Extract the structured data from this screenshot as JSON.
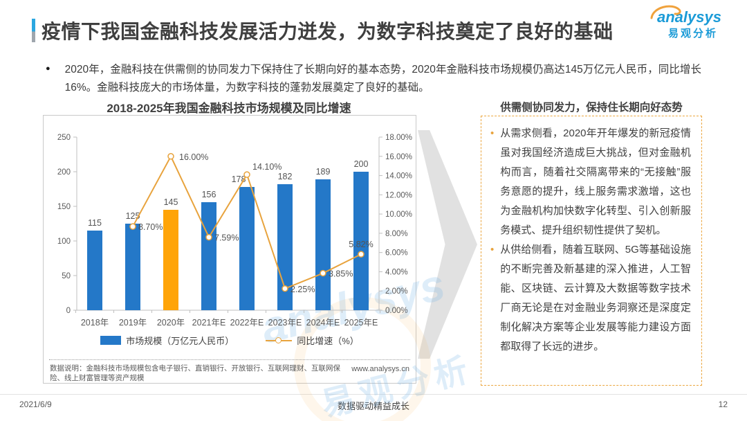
{
  "header": {
    "title": "疫情下我国金融科技发展活力迸发，为数字科技奠定了良好的基础",
    "accent_color": "#2BA7E0"
  },
  "logo": {
    "name": "analysys",
    "cn": "易观分析",
    "color": "#1B9BD7",
    "swoosh_color": "#F0A23C"
  },
  "intro": {
    "text": "2020年，金融科技在供需侧的协同发力下保持住了长期向好的基本态势，2020年金融科技市场规模仍高达145万亿元人民币，同比增长16%。金融科技庞大的市场体量，为数字科技的蓬勃发展奠定了良好的基础。"
  },
  "chart_data": {
    "type": "combo",
    "title": "2018-2025年我国金融科技市场规模及同比增速",
    "categories": [
      "2018年",
      "2019年",
      "2020年",
      "2021年E",
      "2022年E",
      "2023年E",
      "2024年E",
      "2025年E"
    ],
    "series": [
      {
        "name": "市场规模（万亿元人民币）",
        "type": "bar",
        "values": [
          115,
          125,
          145,
          156,
          178,
          182,
          189,
          200
        ],
        "color": "#2478C8",
        "highlight_index": 2,
        "highlight_color": "#FFA408"
      },
      {
        "name": "同比增速（%）",
        "type": "line",
        "values": [
          null,
          8.7,
          16.0,
          7.59,
          14.1,
          2.25,
          3.85,
          5.82
        ],
        "labels": [
          null,
          "8.70%",
          "16.00%",
          "7.59%",
          "14.10%",
          "2.25%",
          "3.85%",
          "5.82%"
        ],
        "color": "#E8A33D"
      }
    ],
    "xlabel": "",
    "ylabel": "",
    "left_axis": {
      "min": 0,
      "max": 250,
      "step": 50
    },
    "right_axis": {
      "min": 0,
      "max": 18,
      "step": 2,
      "format": "percent2"
    },
    "grid": false,
    "legend_position": "bottom"
  },
  "chart_meta": {
    "footnote": "数据说明：金融科技市场规模包含电子银行、直销银行、开放银行、互联网理财、互联网保险、线上财富管理等资产规模",
    "website": "www.analysys.cn"
  },
  "watermark": {
    "en": "analysys",
    "cn": "易观分析"
  },
  "panel": {
    "title": "供需侧协同发力，保持住长期向好态势",
    "items": [
      {
        "text": "从需求侧看，2020年开年爆发的新冠疫情虽对我国经济造成巨大挑战，但对金融机构而言，随着社交隔离带来的“无接触”服务意愿的提升，线上服务需求激增，这也为金融机构加快数字化转型、引入创新服务模式、提升组织韧性提供了契机。"
      },
      {
        "text": "从供给侧看，随着互联网、5G等基础设施的不断完善及新基建的深入推进，人工智能、区块链、云计算及大数据等数字技术厂商无论是在对金融业务洞察还是深度定制化解决方案等企业发展等能力建设方面都取得了长远的进步。"
      }
    ],
    "border_color": "#EBA63E"
  },
  "footer": {
    "date": "2021/6/9",
    "slogan": "数据驱动精益成长",
    "page": "12"
  },
  "palette": {
    "bar_blue": "#2478C8",
    "bar_orange": "#FFA408",
    "line_orange": "#E8A33D",
    "axis": "#BFBFBF",
    "tick_text": "#595959",
    "body_text": "#404040"
  }
}
